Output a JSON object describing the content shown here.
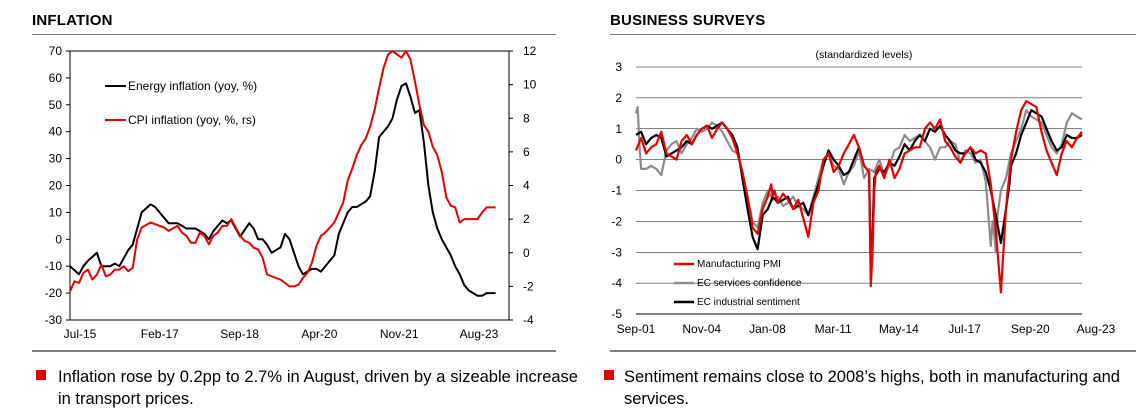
{
  "left": {
    "title": "INFLATION",
    "bullet": "Inflation rose by 0.2pp to 2.7% in August, driven by a sizeable increase in transport prices."
  },
  "right": {
    "title": "BUSINESS SURVEYS",
    "bullet": "Sentiment remains close to 2008’s highs, both in manufacturing and services."
  },
  "colors": {
    "red": "#e60000",
    "black": "#000000",
    "grey": "#8c8c8c",
    "bullet": "#e60000"
  },
  "chart_data": [
    {
      "type": "line",
      "title": "INFLATION",
      "x_labels": [
        "Jul-15",
        "Feb-17",
        "Sep-18",
        "Apr-20",
        "Nov-21",
        "Aug-23"
      ],
      "y_left_ticks": [
        70,
        60,
        50,
        40,
        30,
        20,
        10,
        0,
        -10,
        -20,
        -30
      ],
      "y_right_ticks": [
        12,
        10,
        8,
        6,
        4,
        2,
        0,
        -2,
        -4
      ],
      "ylim_left": [
        -30,
        70
      ],
      "ylim_right": [
        -4,
        12
      ],
      "xlim": [
        0,
        98
      ],
      "series": [
        {
          "name": "Energy inflation (yoy, %)",
          "axis": "left",
          "color": "#000000",
          "x": [
            0,
            2,
            3,
            4,
            6,
            7,
            9,
            10,
            11,
            12,
            13,
            14,
            15,
            16,
            18,
            19,
            20,
            21,
            22,
            24,
            26,
            27,
            28,
            30,
            31,
            32,
            33,
            34,
            35,
            36,
            37,
            38,
            40,
            41,
            42,
            43,
            44,
            45,
            47,
            48,
            49,
            51,
            52,
            54,
            55,
            56,
            57,
            59,
            60,
            62,
            63,
            64,
            65,
            66,
            67,
            68,
            69,
            70,
            71,
            72,
            73,
            74,
            75,
            76,
            77,
            78,
            79,
            80,
            81,
            82,
            83,
            84,
            85,
            86,
            87,
            88,
            89,
            90,
            91,
            92,
            93,
            94,
            95
          ],
          "y": [
            -10,
            -13,
            -10,
            -8,
            -5,
            -10,
            -10,
            -9,
            -10,
            -7,
            -4,
            -2,
            4,
            10,
            13,
            12,
            10,
            8,
            6,
            6,
            4,
            4,
            4,
            2,
            0,
            3,
            5,
            7,
            6,
            7,
            4,
            1,
            6,
            4,
            0,
            0,
            -2,
            -5,
            -3,
            2,
            0,
            -10,
            -13,
            -11,
            -11,
            -12,
            -10,
            -6,
            2,
            10,
            12,
            12,
            13,
            14,
            16,
            25,
            38,
            40,
            42,
            45,
            52,
            57,
            58,
            53,
            47,
            48,
            36,
            20,
            10,
            4,
            0,
            -3,
            -6,
            -10,
            -13,
            -17,
            -19,
            -20,
            -21,
            -21,
            -20,
            -20,
            -20
          ]
        },
        {
          "name": "CPI inflation (yoy, %, rs)",
          "axis": "right",
          "color": "#e60000",
          "x": [
            0,
            1,
            2,
            3,
            4,
            5,
            6,
            7,
            8,
            9,
            10,
            11,
            12,
            13,
            14,
            15,
            16,
            18,
            19,
            21,
            22,
            24,
            25,
            26,
            27,
            28,
            29,
            30,
            31,
            32,
            33,
            34,
            35,
            36,
            37,
            38,
            39,
            40,
            41,
            42,
            43,
            44,
            45,
            46,
            47,
            48,
            49,
            50,
            51,
            52,
            53,
            54,
            55,
            56,
            57,
            59,
            60,
            61,
            62,
            63,
            64,
            65,
            66,
            67,
            68,
            69,
            70,
            71,
            72,
            73,
            74,
            75,
            76,
            77,
            78,
            79,
            80,
            81,
            82,
            83,
            84,
            85,
            86,
            87,
            88,
            89,
            90,
            91,
            92,
            93,
            94,
            95
          ],
          "y": [
            -2.3,
            -1.7,
            -1.8,
            -1.2,
            -1.0,
            -1.6,
            -1.3,
            -0.7,
            -1.4,
            -1.3,
            -1.0,
            -1.0,
            -0.8,
            -1.1,
            -0.9,
            0.8,
            1.5,
            1.8,
            1.7,
            1.5,
            1.3,
            1.6,
            1.2,
            1.0,
            0.6,
            0.6,
            1.2,
            1.0,
            0.5,
            1.0,
            1.2,
            1.6,
            1.6,
            2.0,
            1.5,
            1.0,
            0.7,
            0.6,
            0.3,
            0.2,
            -0.3,
            -1.3,
            -1.4,
            -1.5,
            -1.6,
            -1.8,
            -2.0,
            -2.0,
            -1.9,
            -1.5,
            -1.2,
            -0.6,
            0.4,
            1.0,
            1.2,
            1.8,
            2.4,
            3.0,
            4.3,
            5.0,
            5.8,
            6.4,
            6.8,
            7.5,
            8.5,
            9.8,
            11.0,
            11.8,
            12.0,
            11.8,
            11.6,
            12.0,
            11.5,
            10.2,
            8.8,
            7.6,
            7.2,
            6.3,
            5.8,
            4.8,
            3.3,
            2.8,
            2.7,
            1.8,
            2.0,
            2.0,
            2.0,
            2.0,
            2.4,
            2.7,
            2.7,
            2.7
          ]
        }
      ],
      "legend_location": "upper-left"
    },
    {
      "type": "line",
      "title": "BUSINESS SURVEYS",
      "subtitle": "(standardized levels)",
      "x_labels": [
        "Sep-01",
        "Nov-04",
        "Jan-08",
        "Mar-11",
        "May-14",
        "Jul-17",
        "Sep-20",
        "Aug-23"
      ],
      "y_ticks": [
        3,
        2,
        1,
        0,
        -1,
        -2,
        -3,
        -4,
        -5
      ],
      "ylim": [
        -5,
        3
      ],
      "xlim": [
        0,
        264
      ],
      "series": [
        {
          "name": "Manufacturing PMI",
          "color": "#e60000",
          "x": [
            0,
            3,
            6,
            9,
            12,
            15,
            18,
            21,
            24,
            27,
            30,
            33,
            36,
            39,
            42,
            45,
            48,
            51,
            54,
            57,
            60,
            63,
            66,
            69,
            72,
            75,
            78,
            79,
            80,
            81,
            82,
            84,
            87,
            90,
            93,
            96,
            99,
            102,
            105,
            108,
            111,
            114,
            117,
            120,
            123,
            126,
            129,
            132,
            135,
            138,
            139,
            140,
            141,
            142,
            144,
            147,
            150,
            153,
            156,
            159,
            162,
            165,
            168,
            171,
            174,
            177,
            180,
            183,
            186,
            189,
            192,
            195,
            198,
            201,
            204,
            207,
            210,
            213,
            216,
            219,
            220,
            221,
            222,
            223,
            225,
            228,
            231,
            234,
            237,
            240,
            243,
            246,
            249,
            252,
            255,
            258,
            261,
            264
          ],
          "y": [
            0.3,
            0.7,
            0.2,
            0.4,
            0.5,
            0.9,
            0.2,
            0.1,
            0.0,
            0.6,
            0.8,
            0.5,
            0.8,
            1.0,
            1.1,
            0.7,
            1.0,
            1.2,
            1.0,
            0.7,
            0.2,
            -0.4,
            -1.2,
            -2.2,
            -2.4,
            -1.6,
            -1.2,
            -1.0,
            -0.8,
            -1.2,
            -1.0,
            -1.4,
            -1.1,
            -1.3,
            -1.6,
            -1.3,
            -1.9,
            -2.5,
            -1.4,
            -1.0,
            0.0,
            0.2,
            -0.4,
            -0.2,
            0.2,
            0.5,
            0.8,
            0.4,
            -0.2,
            -0.4,
            -4.1,
            -3.0,
            -1.0,
            -0.4,
            -0.2,
            -0.6,
            0.0,
            -0.6,
            -0.3,
            0.2,
            0.3,
            0.4,
            0.4,
            1.0,
            1.2,
            1.0,
            1.3,
            0.6,
            0.4,
            0.1,
            -0.1,
            0.2,
            0.4,
            0.2,
            0.3,
            0.2,
            -0.8,
            -2.3,
            -4.3,
            -1.6,
            -1.0,
            -0.5,
            0.0,
            0.3,
            0.9,
            1.6,
            1.9,
            1.8,
            1.7,
            0.9,
            0.3,
            -0.1,
            -0.5,
            0.2,
            0.6,
            0.4,
            0.7,
            0.9
          ]
        },
        {
          "name": "EC services confidence",
          "color": "#8c8c8c",
          "x": [
            0,
            1,
            2,
            3,
            6,
            9,
            12,
            15,
            18,
            21,
            24,
            27,
            30,
            33,
            36,
            39,
            42,
            45,
            48,
            51,
            54,
            57,
            60,
            63,
            66,
            69,
            72,
            75,
            78,
            81,
            84,
            87,
            90,
            93,
            96,
            99,
            102,
            105,
            108,
            111,
            114,
            117,
            120,
            123,
            126,
            129,
            132,
            135,
            138,
            141,
            144,
            147,
            150,
            153,
            156,
            159,
            162,
            165,
            168,
            171,
            174,
            177,
            180,
            183,
            186,
            189,
            192,
            195,
            198,
            201,
            204,
            207,
            210,
            211,
            212,
            213,
            214,
            216,
            219,
            222,
            225,
            228,
            231,
            234,
            237,
            240,
            243,
            246,
            249,
            252,
            255,
            258,
            261,
            264
          ],
          "y": [
            1.5,
            1.7,
            0.5,
            -0.3,
            -0.3,
            -0.2,
            -0.3,
            -0.5,
            0.3,
            0.5,
            0.6,
            0.2,
            0.5,
            0.7,
            1.0,
            0.9,
            1.0,
            1.2,
            1.1,
            0.9,
            0.6,
            0.3,
            0.2,
            -0.4,
            -1.2,
            -2.0,
            -2.2,
            -1.4,
            -1.0,
            -1.3,
            -1.2,
            -1.5,
            -1.4,
            -1.2,
            -1.5,
            -1.6,
            -1.8,
            -1.2,
            -0.6,
            0.0,
            0.2,
            -0.2,
            -0.3,
            -0.8,
            -0.4,
            -0.2,
            0.3,
            -0.6,
            -0.3,
            -0.4,
            0.0,
            -0.5,
            -0.2,
            0.3,
            0.4,
            0.8,
            0.6,
            0.7,
            0.8,
            0.6,
            0.4,
            0.0,
            0.4,
            0.4,
            0.6,
            0.5,
            -0.1,
            0.3,
            0.2,
            -0.1,
            0.0,
            -0.7,
            -2.8,
            -2.0,
            -2.4,
            -3.0,
            -1.8,
            -1.0,
            -0.6,
            0.2,
            0.6,
            1.0,
            1.6,
            1.4,
            1.3,
            1.2,
            0.8,
            0.4,
            0.2,
            0.5,
            1.2,
            1.5,
            1.4,
            1.3
          ]
        },
        {
          "name": "EC industrial sentiment",
          "color": "#000000",
          "x": [
            0,
            3,
            6,
            9,
            12,
            15,
            18,
            21,
            24,
            27,
            30,
            33,
            36,
            39,
            42,
            45,
            48,
            51,
            54,
            57,
            60,
            63,
            66,
            69,
            72,
            75,
            78,
            81,
            84,
            87,
            90,
            93,
            96,
            99,
            102,
            105,
            108,
            111,
            114,
            117,
            120,
            123,
            126,
            129,
            132,
            135,
            138,
            139,
            140,
            141,
            144,
            147,
            150,
            153,
            156,
            159,
            162,
            165,
            168,
            171,
            174,
            177,
            180,
            183,
            186,
            189,
            192,
            195,
            198,
            201,
            204,
            207,
            210,
            213,
            216,
            219,
            220,
            221,
            222,
            225,
            228,
            231,
            234,
            237,
            240,
            243,
            246,
            249,
            252,
            255,
            258,
            261,
            264
          ],
          "y": [
            0.8,
            0.9,
            0.5,
            0.7,
            0.8,
            0.7,
            0.1,
            0.2,
            0.3,
            0.4,
            0.6,
            0.5,
            0.8,
            1.0,
            1.1,
            1.0,
            1.1,
            1.2,
            1.0,
            0.8,
            0.4,
            -0.6,
            -1.6,
            -2.5,
            -2.9,
            -1.8,
            -1.6,
            -1.2,
            -1.4,
            -1.3,
            -1.2,
            -1.6,
            -1.5,
            -1.4,
            -1.8,
            -1.3,
            -0.8,
            -0.2,
            0.3,
            0.0,
            -0.2,
            -0.5,
            -0.4,
            0.0,
            0.4,
            -0.2,
            -0.4,
            -3.5,
            -2.5,
            -0.6,
            -0.3,
            -0.4,
            -0.1,
            -0.2,
            0.1,
            0.5,
            0.3,
            0.6,
            0.8,
            0.6,
            1.0,
            0.9,
            1.1,
            0.8,
            0.6,
            0.3,
            0.2,
            0.2,
            0.4,
            0.0,
            -0.1,
            -0.4,
            -1.0,
            -1.8,
            -2.7,
            -1.6,
            -1.2,
            -0.8,
            -0.2,
            0.2,
            0.8,
            1.2,
            1.6,
            1.5,
            1.4,
            1.0,
            0.6,
            0.3,
            0.4,
            0.8,
            0.7,
            0.7,
            0.8
          ]
        }
      ],
      "legend_location": "lower-left"
    }
  ]
}
